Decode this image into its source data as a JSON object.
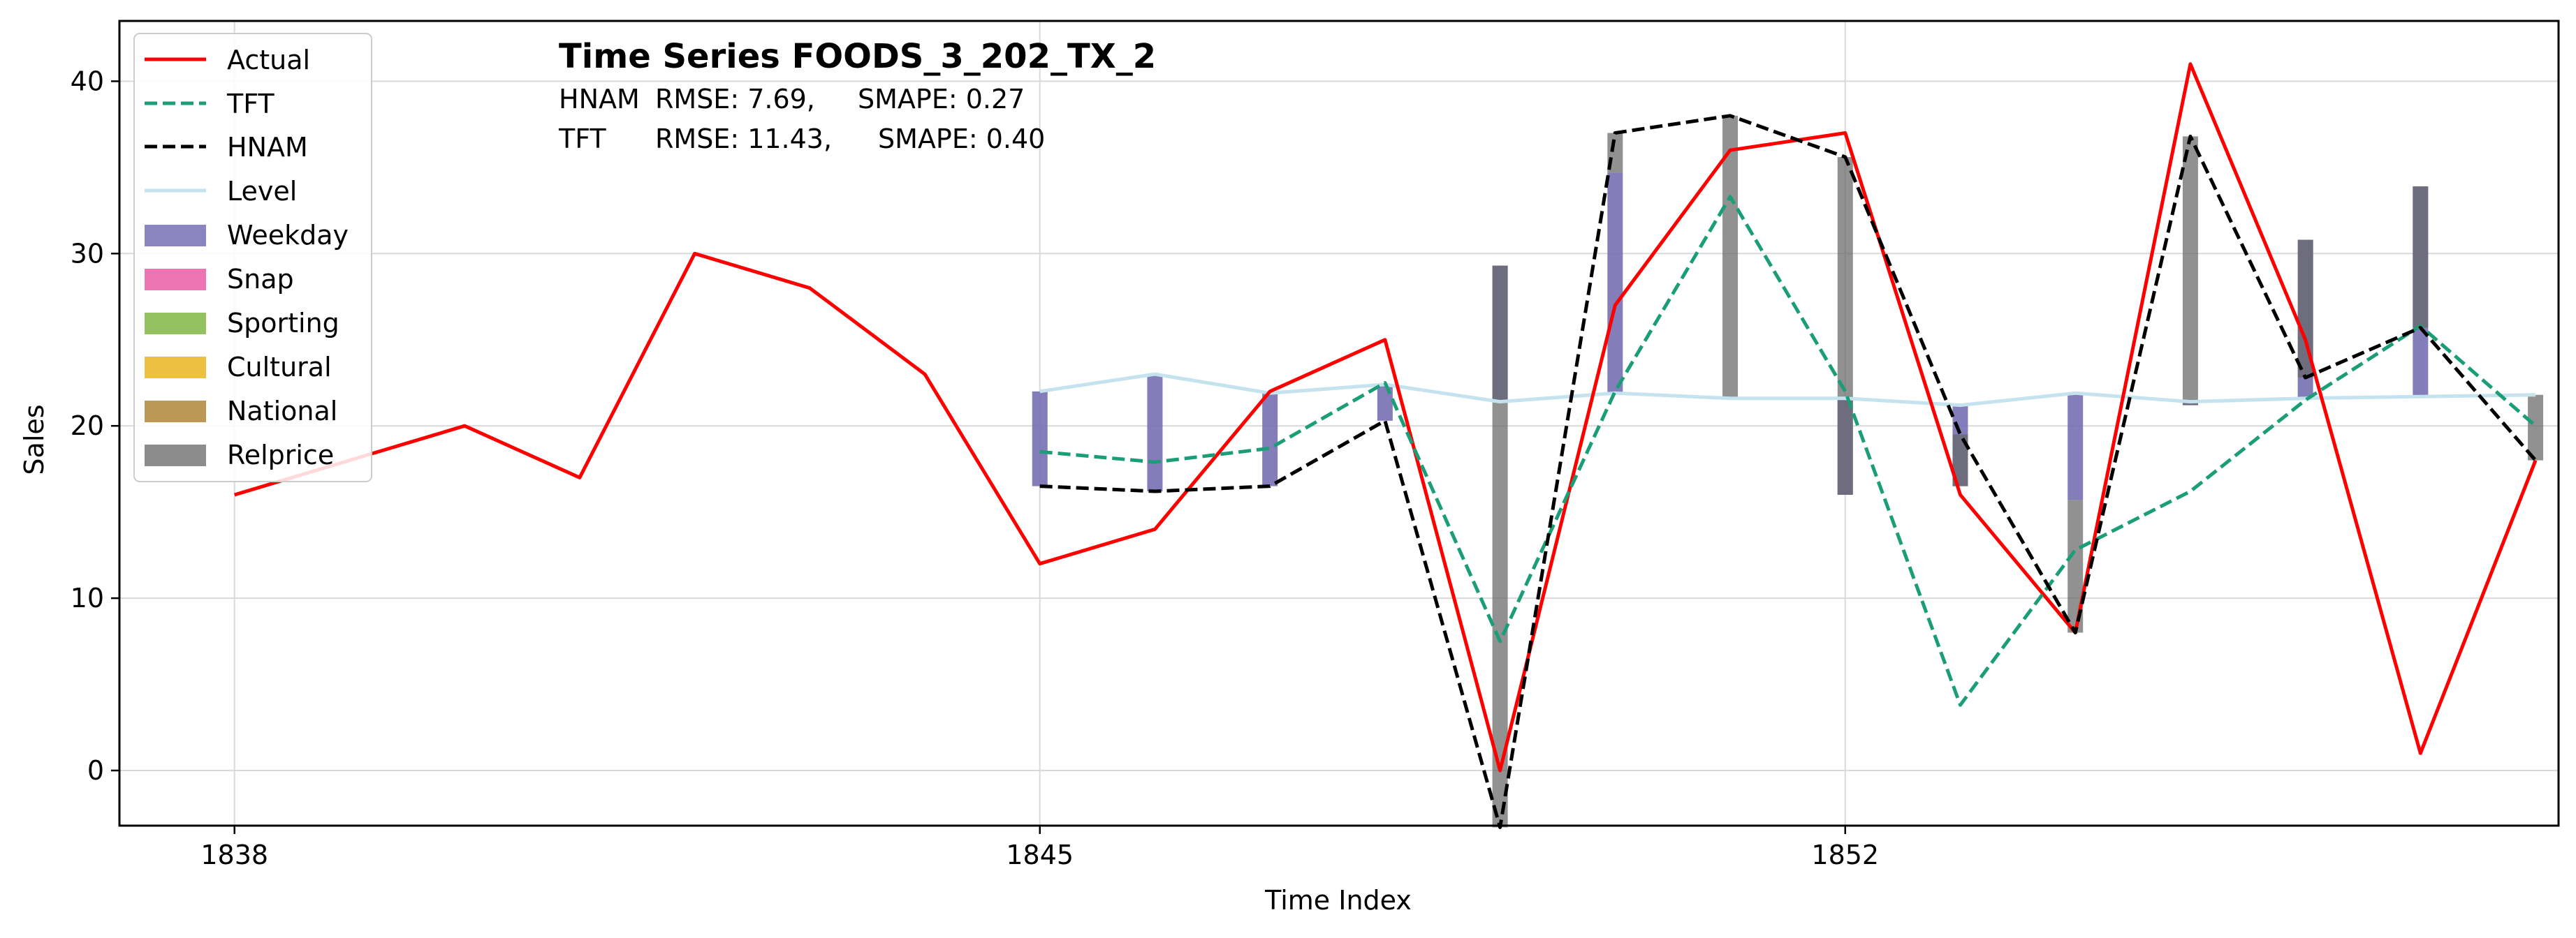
{
  "chart_data": {
    "type": "line",
    "title": "Time Series FOODS_3_202_TX_2",
    "metrics": [
      {
        "model": "HNAM",
        "rmse": "RMSE: 7.69,",
        "smape": "SMAPE: 0.27"
      },
      {
        "model": "TFT",
        "rmse": "RMSE: 11.43,",
        "smape": "SMAPE: 0.40"
      }
    ],
    "xlabel": "Time Index",
    "ylabel": "Sales",
    "xlim": [
      1837,
      1858.2
    ],
    "ylim": [
      -3.2,
      43.5
    ],
    "xticks": [
      1838,
      1845,
      1852
    ],
    "yticks": [
      0,
      10,
      20,
      30,
      40
    ],
    "grid": true,
    "legend_position": "top-left",
    "series": [
      {
        "name": "Actual",
        "style": "solid",
        "color": "#ff0000",
        "x": [
          1838,
          1839,
          1840,
          1841,
          1842,
          1843,
          1844,
          1845,
          1846,
          1847,
          1848,
          1849,
          1850,
          1851,
          1852,
          1853,
          1854,
          1855,
          1856,
          1857,
          1858
        ],
        "values": [
          16,
          18,
          20,
          17,
          30,
          28,
          23,
          12,
          14,
          22,
          25,
          0,
          27,
          36,
          37,
          16,
          8,
          41,
          25,
          1,
          18
        ]
      },
      {
        "name": "TFT",
        "style": "dashed",
        "color": "#1b9e77",
        "x": [
          1845,
          1846,
          1847,
          1848,
          1849,
          1850,
          1851,
          1852,
          1853,
          1854,
          1855,
          1856,
          1857,
          1858
        ],
        "values": [
          18.5,
          17.9,
          18.7,
          22.5,
          7.5,
          22,
          33.3,
          22,
          3.8,
          12.8,
          16.2,
          21.5,
          25.8,
          20
        ]
      },
      {
        "name": "HNAM",
        "style": "dashed",
        "color": "#000000",
        "x": [
          1845,
          1846,
          1847,
          1848,
          1849,
          1850,
          1851,
          1852,
          1853,
          1854,
          1855,
          1856,
          1857,
          1858
        ],
        "values": [
          16.5,
          16.2,
          16.5,
          20.3,
          -3.3,
          37,
          38,
          35.6,
          19.5,
          8,
          36.8,
          22.8,
          25.7,
          18
        ]
      },
      {
        "name": "Level",
        "style": "solid",
        "color": "#c4e3ee",
        "x": [
          1845,
          1846,
          1847,
          1848,
          1849,
          1850,
          1851,
          1852,
          1853,
          1854,
          1855,
          1856,
          1857,
          1858
        ],
        "values": [
          22,
          23,
          21.9,
          22.4,
          21.4,
          21.9,
          21.6,
          21.6,
          21.2,
          21.9,
          21.4,
          21.6,
          21.7,
          21.8
        ]
      }
    ],
    "components": [
      {
        "name": "Weekday",
        "color": "#7570b3"
      },
      {
        "name": "Snap",
        "color": "#e7298a"
      },
      {
        "name": "Sporting",
        "color": "#66a61e"
      },
      {
        "name": "Cultural",
        "color": "#e6ab02"
      },
      {
        "name": "National",
        "color": "#a6761d"
      },
      {
        "name": "Relprice",
        "color": "#666666"
      }
    ],
    "component_bars": [
      {
        "x": 1845,
        "parts": [
          {
            "c": "Weekday",
            "from": 22,
            "to": 16.5
          }
        ]
      },
      {
        "x": 1846,
        "parts": [
          {
            "c": "Weekday",
            "from": 23,
            "to": 16.2
          }
        ]
      },
      {
        "x": 1847,
        "parts": [
          {
            "c": "Weekday",
            "from": 21.9,
            "to": 16.5
          }
        ]
      },
      {
        "x": 1848,
        "parts": [
          {
            "c": "Weekday",
            "from": 22.4,
            "to": 20.3
          }
        ]
      },
      {
        "x": 1849,
        "parts": [
          {
            "c": "Weekday",
            "from": 21.4,
            "to": 29.3
          },
          {
            "c": "Relprice",
            "from": 29.3,
            "to": -3.3
          }
        ]
      },
      {
        "x": 1850,
        "parts": [
          {
            "c": "Weekday",
            "from": 21.9,
            "to": 34.7
          },
          {
            "c": "Relprice",
            "from": 34.7,
            "to": 37
          }
        ]
      },
      {
        "x": 1851,
        "parts": [
          {
            "c": "Relprice",
            "from": 21.6,
            "to": 38
          }
        ]
      },
      {
        "x": 1852,
        "parts": [
          {
            "c": "Weekday",
            "from": 21.6,
            "to": 16
          },
          {
            "c": "Relprice",
            "from": 16,
            "to": 35.6
          }
        ]
      },
      {
        "x": 1853,
        "parts": [
          {
            "c": "Weekday",
            "from": 21.2,
            "to": 16.5
          },
          {
            "c": "Relprice",
            "from": 16.5,
            "to": 19.5
          }
        ]
      },
      {
        "x": 1854,
        "parts": [
          {
            "c": "Weekday",
            "from": 21.9,
            "to": 15.7
          },
          {
            "c": "Relprice",
            "from": 15.7,
            "to": 8
          }
        ]
      },
      {
        "x": 1855,
        "parts": [
          {
            "c": "Weekday",
            "from": 21.4,
            "to": 21.2
          },
          {
            "c": "Relprice",
            "from": 21.2,
            "to": 36.8
          }
        ]
      },
      {
        "x": 1856,
        "parts": [
          {
            "c": "Weekday",
            "from": 21.6,
            "to": 30.8
          },
          {
            "c": "Relprice",
            "from": 30.8,
            "to": 22.8
          }
        ]
      },
      {
        "x": 1857,
        "parts": [
          {
            "c": "Weekday",
            "from": 21.7,
            "to": 33.9
          },
          {
            "c": "Relprice",
            "from": 33.9,
            "to": 25.7
          }
        ]
      },
      {
        "x": 1858,
        "parts": [
          {
            "c": "Relprice",
            "from": 21.8,
            "to": 18
          }
        ]
      }
    ]
  }
}
